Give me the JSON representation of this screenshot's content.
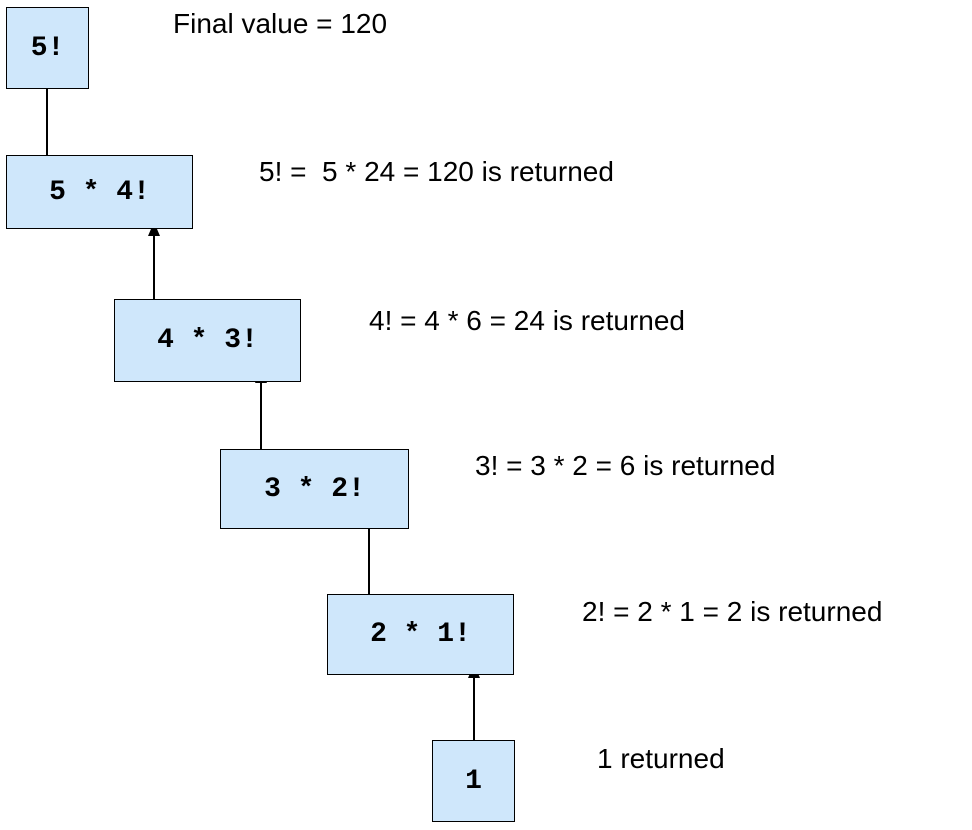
{
  "diagram": {
    "nodes": [
      {
        "label": "5!"
      },
      {
        "label": "5 * 4!"
      },
      {
        "label": "4 * 3!"
      },
      {
        "label": "3 * 2!"
      },
      {
        "label": "2 * 1!"
      },
      {
        "label": "1"
      }
    ],
    "notes": [
      {
        "text": "Final value = 120"
      },
      {
        "text": "5! =  5 * 24 = 120 is returned"
      },
      {
        "text": "4! = 4 * 6 = 24 is returned"
      },
      {
        "text": "3! = 3 * 2 = 6 is returned"
      },
      {
        "text": "2! = 2 * 1 = 2 is returned"
      },
      {
        "text": "1 returned"
      }
    ],
    "colors": {
      "box_fill": "#cfe7fb",
      "stroke": "#000000"
    }
  }
}
